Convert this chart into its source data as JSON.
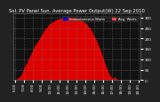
{
  "title": "Sol. PV Panel Sun. Average Power Output(W) 22 Sep 2010",
  "legend_labels": [
    "Instantaneous Watts",
    "Avg. Watts"
  ],
  "legend_colors": [
    "#0000ff",
    "#ff4444"
  ],
  "bg_color": "#222222",
  "plot_bg": "#111111",
  "bar_color": "#dd0000",
  "bar_edge_color": "#dd0000",
  "grid_color": "#888888",
  "grid_style": ":",
  "yticks": [
    0,
    50,
    100,
    150,
    200,
    250,
    300
  ],
  "ytick_labels": [
    "0",
    "50",
    "100",
    "150",
    "200",
    "250",
    "300"
  ],
  "title_fontsize": 3.8,
  "tick_fontsize": 3.0,
  "data_x": [
    6.0,
    6.1,
    6.2,
    6.3,
    6.4,
    6.5,
    6.6,
    6.7,
    6.8,
    6.9,
    7.0,
    7.1,
    7.2,
    7.3,
    7.4,
    7.5,
    7.6,
    7.7,
    7.8,
    7.9,
    8.0,
    8.1,
    8.2,
    8.3,
    8.4,
    8.5,
    8.6,
    8.7,
    8.8,
    8.9,
    9.0,
    9.1,
    9.2,
    9.3,
    9.4,
    9.5,
    9.6,
    9.7,
    9.8,
    9.9,
    10.0,
    10.1,
    10.2,
    10.3,
    10.4,
    10.5,
    10.6,
    10.7,
    10.8,
    10.9,
    11.0,
    11.1,
    11.2,
    11.3,
    11.4,
    11.5,
    11.6,
    11.7,
    11.8,
    11.9,
    12.0,
    12.1,
    12.2,
    12.3,
    12.4,
    12.5,
    12.6,
    12.7,
    12.8,
    12.9,
    13.0,
    13.1,
    13.2,
    13.3,
    13.4,
    13.5,
    13.6,
    13.7,
    13.8,
    13.9,
    14.0,
    14.1,
    14.2,
    14.3,
    14.4,
    14.5,
    14.6,
    14.7,
    14.8,
    14.9,
    15.0,
    15.1,
    15.2,
    15.3,
    15.4,
    15.5,
    15.6,
    15.7,
    15.8,
    15.9,
    16.0,
    16.1,
    16.2,
    16.3,
    16.4,
    16.5,
    16.6,
    16.7,
    16.8,
    16.9,
    17.0,
    17.1,
    17.2,
    17.3,
    17.4,
    17.5,
    17.6,
    17.7,
    17.8,
    17.9,
    18.0,
    18.1,
    18.2,
    18.3,
    18.4,
    18.5
  ],
  "data_y": [
    2,
    3,
    5,
    8,
    10,
    15,
    20,
    28,
    35,
    45,
    55,
    65,
    72,
    80,
    90,
    100,
    108,
    115,
    125,
    135,
    145,
    155,
    162,
    168,
    175,
    182,
    188,
    195,
    202,
    210,
    218,
    225,
    232,
    238,
    244,
    250,
    255,
    260,
    264,
    268,
    272,
    275,
    278,
    280,
    283,
    285,
    287,
    289,
    290,
    292,
    293,
    294,
    295,
    295,
    296,
    296,
    297,
    297,
    298,
    298,
    298,
    299,
    299,
    300,
    299,
    299,
    298,
    298,
    297,
    296,
    295,
    294,
    293,
    291,
    289,
    287,
    285,
    282,
    279,
    276,
    272,
    268,
    264,
    259,
    254,
    248,
    242,
    235,
    228,
    220,
    212,
    203,
    194,
    184,
    174,
    163,
    152,
    140,
    128,
    115,
    102,
    90,
    78,
    67,
    56,
    46,
    37,
    28,
    20,
    13,
    8,
    6,
    10,
    15,
    8,
    5,
    3,
    2,
    1,
    1,
    0,
    0,
    0,
    0,
    0,
    0
  ],
  "xtick_positions": [
    6,
    7,
    8,
    9,
    10,
    11,
    12,
    13,
    14,
    15,
    16,
    17,
    18,
    19,
    20
  ],
  "xtick_labels": [
    "6:00",
    "7:00",
    "8:00",
    "9:00",
    "10:00",
    "11:00",
    "12:00",
    "13:00",
    "14:00",
    "15:00",
    "16:00",
    "17:00",
    "18:00",
    "19:00",
    "20:00"
  ],
  "x_start": 5.8,
  "x_end": 20.2,
  "y_max": 320,
  "text_color": "#ffffff",
  "spine_color": "#666666"
}
